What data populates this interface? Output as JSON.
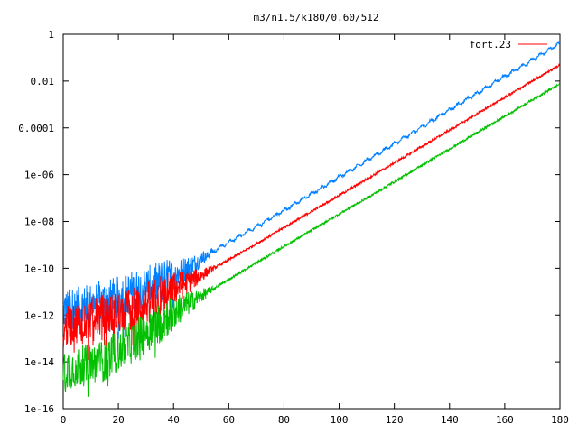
{
  "chart_data": {
    "type": "line",
    "title": "m3/n1.5/k180/0.60/512",
    "xlabel": "",
    "ylabel": "",
    "xlim": [
      0,
      180
    ],
    "ylim": [
      1e-16,
      1
    ],
    "yscale": "log",
    "grid": false,
    "legend_position": "top-right",
    "x_ticks": [
      0,
      20,
      40,
      60,
      80,
      100,
      120,
      140,
      160,
      180
    ],
    "y_ticks": [
      {
        "value": 1e-16,
        "label": "1e-16"
      },
      {
        "value": 1e-14,
        "label": "1e-14"
      },
      {
        "value": 1e-12,
        "label": "1e-12"
      },
      {
        "value": 1e-10,
        "label": "1e-10"
      },
      {
        "value": 1e-08,
        "label": "1e-08"
      },
      {
        "value": 1e-06,
        "label": "1e-06"
      },
      {
        "value": 0.0001,
        "label": "0.0001"
      },
      {
        "value": 0.01,
        "label": "0.01"
      },
      {
        "value": 1,
        "label": "1"
      }
    ],
    "series": [
      {
        "color": "#0080ff",
        "points": [
          [
            0,
            1.6e-12
          ],
          [
            5,
            2e-12
          ],
          [
            10,
            3e-12
          ],
          [
            15,
            4e-12
          ],
          [
            20,
            6e-12
          ],
          [
            25,
            1e-11
          ],
          [
            30,
            1.5e-11
          ],
          [
            35,
            2.5e-11
          ],
          [
            40,
            5e-11
          ],
          [
            45,
            1e-10
          ],
          [
            50,
            2.5e-10
          ],
          [
            60,
            1.3e-09
          ],
          [
            70,
            6e-09
          ],
          [
            80,
            3e-08
          ],
          [
            90,
            1.5e-07
          ],
          [
            100,
            8e-07
          ],
          [
            110,
            4e-06
          ],
          [
            120,
            2.1e-05
          ],
          [
            130,
            0.00011
          ],
          [
            140,
            0.0006
          ],
          [
            150,
            0.003
          ],
          [
            160,
            0.016
          ],
          [
            170,
            0.08
          ],
          [
            178,
            0.3
          ],
          [
            180,
            0.4
          ]
        ]
      },
      {
        "name": "fort.23",
        "color": "#ff0000",
        "points": [
          [
            0,
            2.5e-13
          ],
          [
            5,
            5e-13
          ],
          [
            10,
            8e-13
          ],
          [
            15,
            1e-12
          ],
          [
            20,
            1.3e-12
          ],
          [
            25,
            2e-12
          ],
          [
            30,
            3e-12
          ],
          [
            35,
            6e-12
          ],
          [
            40,
            1.3e-11
          ],
          [
            45,
            2.5e-11
          ],
          [
            50,
            5e-11
          ],
          [
            60,
            2.3e-10
          ],
          [
            70,
            1.1e-09
          ],
          [
            80,
            5.5e-09
          ],
          [
            90,
            2.7e-08
          ],
          [
            100,
            1.3e-07
          ],
          [
            110,
            6.5e-07
          ],
          [
            120,
            3.2e-06
          ],
          [
            130,
            1.6e-05
          ],
          [
            140,
            8e-05
          ],
          [
            150,
            0.0004
          ],
          [
            160,
            0.002
          ],
          [
            170,
            0.01
          ],
          [
            180,
            0.05
          ]
        ]
      },
      {
        "color": "#00c000",
        "points": [
          [
            0,
            5e-15
          ],
          [
            5,
            6e-15
          ],
          [
            10,
            8e-15
          ],
          [
            15,
            1.2e-14
          ],
          [
            20,
            3e-14
          ],
          [
            25,
            7e-14
          ],
          [
            30,
            2e-13
          ],
          [
            35,
            5e-13
          ],
          [
            40,
            1.3e-12
          ],
          [
            50,
            6.5e-12
          ],
          [
            60,
            3.3e-11
          ],
          [
            70,
            1.7e-10
          ],
          [
            80,
            8.5e-10
          ],
          [
            90,
            4.2e-09
          ],
          [
            100,
            2.1e-08
          ],
          [
            110,
            1e-07
          ],
          [
            120,
            5e-07
          ],
          [
            130,
            2.5e-06
          ],
          [
            140,
            1.25e-05
          ],
          [
            150,
            6.2e-05
          ],
          [
            160,
            0.00031
          ],
          [
            170,
            0.0016
          ],
          [
            180,
            0.0075
          ]
        ]
      }
    ]
  }
}
